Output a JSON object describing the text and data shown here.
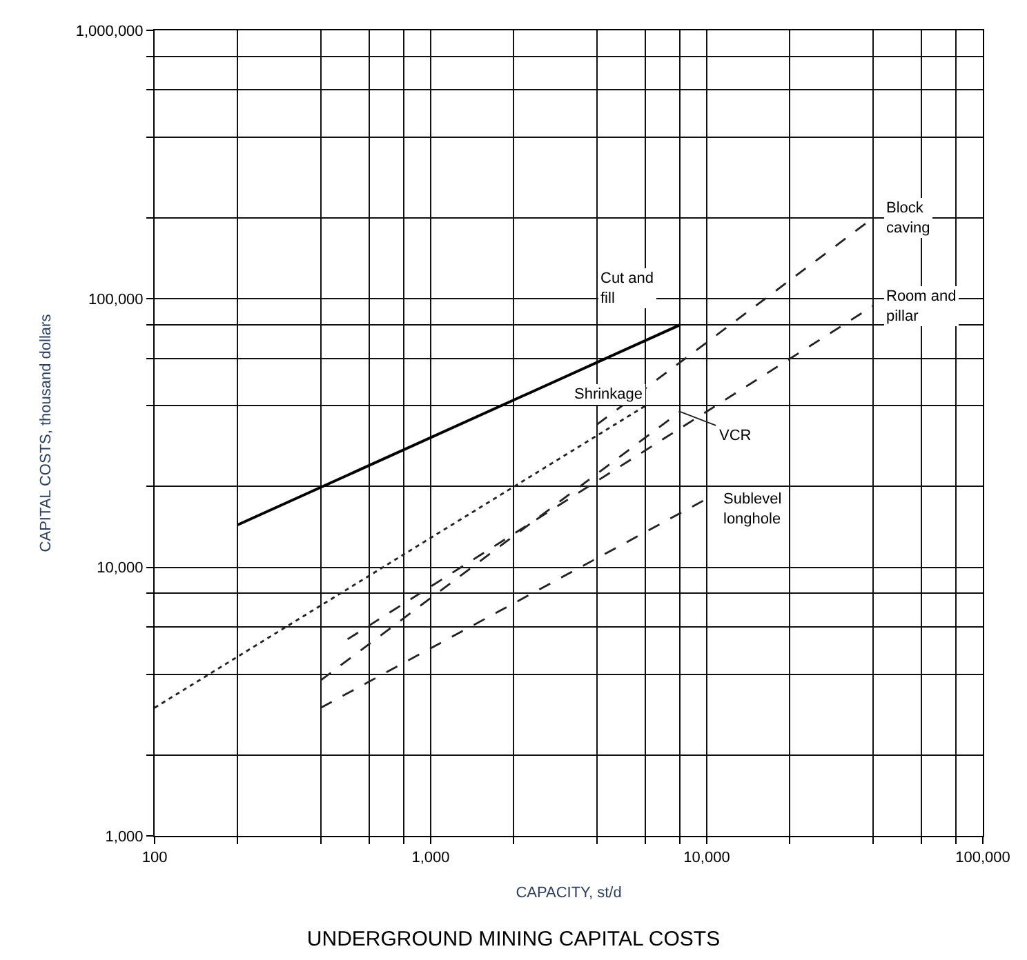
{
  "chart_data": {
    "type": "line",
    "title": "UNDERGROUND MINING CAPITAL COSTS",
    "xlabel": "CAPACITY, st/d",
    "ylabel": "CAPITAL COSTS, thousand dollars",
    "log": "xy",
    "grid": true,
    "legend": false,
    "marker": "none",
    "xlim": [
      100,
      100000
    ],
    "ylim": [
      1000,
      1000000
    ],
    "xticks": [
      {
        "value": 100,
        "label": "100"
      },
      {
        "value": 200,
        "label": null
      },
      {
        "value": 400,
        "label": null
      },
      {
        "value": 600,
        "label": null
      },
      {
        "value": 800,
        "label": null
      },
      {
        "value": 1000,
        "label": "1,000"
      },
      {
        "value": 2000,
        "label": null
      },
      {
        "value": 4000,
        "label": null
      },
      {
        "value": 6000,
        "label": null
      },
      {
        "value": 8000,
        "label": null
      },
      {
        "value": 10000,
        "label": "10,000"
      },
      {
        "value": 20000,
        "label": null
      },
      {
        "value": 40000,
        "label": null
      },
      {
        "value": 60000,
        "label": null
      },
      {
        "value": 80000,
        "label": null
      },
      {
        "value": 100000,
        "label": "100,000"
      }
    ],
    "yticks": [
      {
        "value": 1000,
        "label": "1,000"
      },
      {
        "value": 2000,
        "label": null
      },
      {
        "value": 4000,
        "label": null
      },
      {
        "value": 6000,
        "label": null
      },
      {
        "value": 8000,
        "label": null
      },
      {
        "value": 10000,
        "label": "10,000"
      },
      {
        "value": 20000,
        "label": null
      },
      {
        "value": 40000,
        "label": null
      },
      {
        "value": 60000,
        "label": null
      },
      {
        "value": 80000,
        "label": null
      },
      {
        "value": 100000,
        "label": "100,000"
      },
      {
        "value": 200000,
        "label": null
      },
      {
        "value": 400000,
        "label": null
      },
      {
        "value": 600000,
        "label": null
      },
      {
        "value": 800000,
        "label": null
      },
      {
        "value": 1000000,
        "label": "1,000,000"
      }
    ],
    "series": [
      {
        "name": "Cut and fill",
        "color": "#000000",
        "line_style": "solid",
        "x": [
          200,
          8000
        ],
        "values": [
          14400,
          80000
        ]
      },
      {
        "name": "Shrinkage",
        "color": "#222222",
        "line_style": "dotted",
        "x": [
          100,
          6000
        ],
        "values": [
          3000,
          40000
        ]
      },
      {
        "name": "Block caving",
        "color": "#222222",
        "line_style": "dashed",
        "x": [
          4000,
          40000
        ],
        "values": [
          34000,
          200000
        ]
      },
      {
        "name": "Room and pillar",
        "color": "#222222",
        "line_style": "dashed",
        "x": [
          500,
          40000
        ],
        "values": [
          5400,
          94000
        ]
      },
      {
        "name": "VCR",
        "color": "#222222",
        "line_style": "dashed",
        "x": [
          400,
          8000
        ],
        "values": [
          3800,
          38000
        ]
      },
      {
        "name": "Sublevel longhole",
        "color": "#222222",
        "line_style": "dashed",
        "x": [
          400,
          10000
        ],
        "values": [
          3000,
          18000
        ]
      }
    ]
  }
}
